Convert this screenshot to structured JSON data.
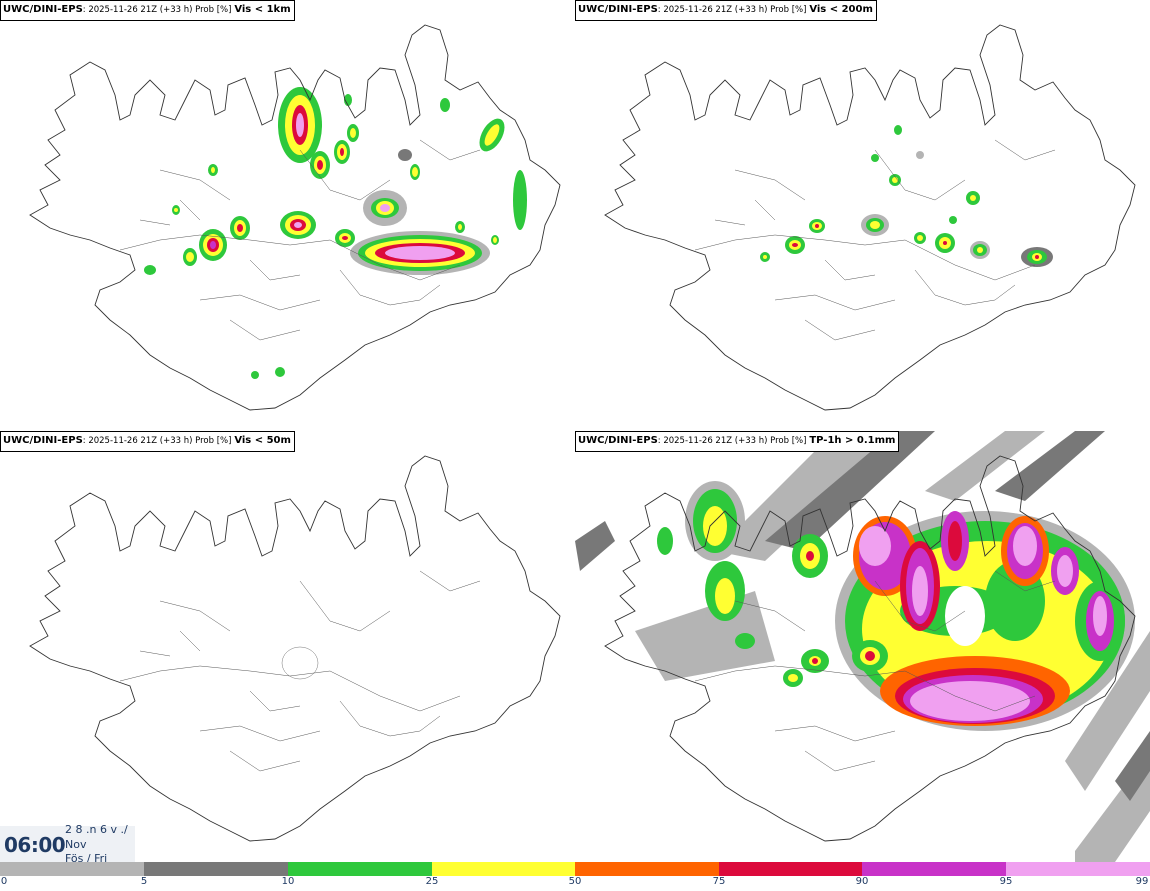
{
  "panels": [
    {
      "id": "vis-1km",
      "source": "UWC/DINI-EPS",
      "meta": ": 2025-11-26 21Z (+33 h) Prob [%]",
      "variable": "Vis < 1km"
    },
    {
      "id": "vis-200m",
      "source": "UWC/DINI-EPS",
      "meta": ": 2025-11-26 21Z (+33 h) Prob [%]",
      "variable": "Vis < 200m"
    },
    {
      "id": "vis-50m",
      "source": "UWC/DINI-EPS",
      "meta": ": 2025-11-26 21Z (+33 h) Prob [%]",
      "variable": "Vis < 50m"
    },
    {
      "id": "tp-1h",
      "source": "UWC/DINI-EPS",
      "meta": ": 2025-11-26 21Z (+33 h) Prob [%]",
      "variable": "TP-1h > 0.1mm"
    }
  ],
  "valid_time": {
    "time": "06:00",
    "date_top": "2 8 .n 6 v ./",
    "month": "Nov",
    "weekday": "Fös / Fri"
  },
  "colorbar": {
    "ticks": [
      "0",
      "5",
      "10",
      "25",
      "50",
      "75",
      "90",
      "95",
      "99"
    ],
    "colors": [
      "#ffffff",
      "#b4b4b4",
      "#787878",
      "#2ec83c",
      "#ffff32",
      "#ff6400",
      "#dc0a3c",
      "#c832c8",
      "#f0a0f0"
    ]
  },
  "colors": {
    "p5": "#b4b4b4",
    "p10": "#787878",
    "p25": "#2ec83c",
    "p50": "#ffff32",
    "p75": "#ff6400",
    "p90": "#dc0a3c",
    "p95": "#c832c8",
    "p99": "#f0a0f0"
  }
}
